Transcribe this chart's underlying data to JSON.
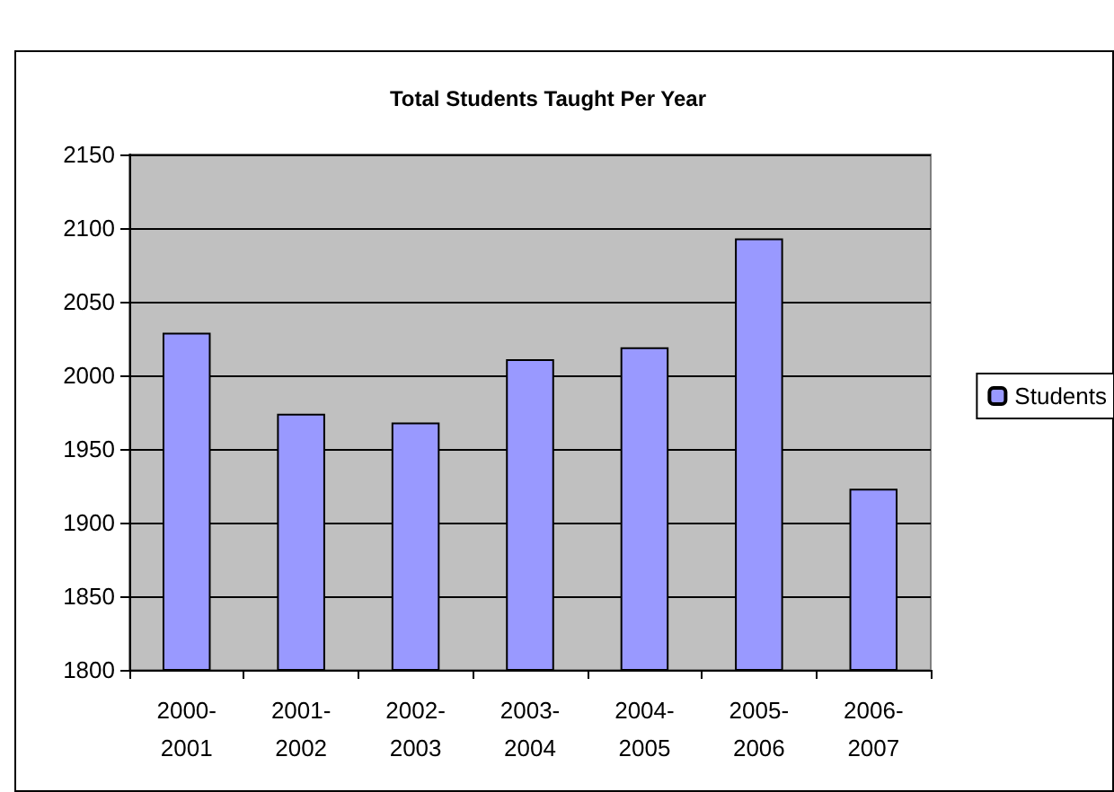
{
  "chart_data": {
    "type": "bar",
    "title": "Total Students Taught Per Year",
    "categories": [
      "2000-2001",
      "2001-2002",
      "2002-2003",
      "2003-2004",
      "2004-2005",
      "2005-2006",
      "2006-2007"
    ],
    "series": [
      {
        "name": "Students",
        "color": "#9999ff",
        "values": [
          2029,
          1974,
          1968,
          2011,
          2019,
          2093,
          1923
        ]
      }
    ],
    "ylim": [
      1800,
      2150
    ],
    "yticks": [
      1800,
      1850,
      1900,
      1950,
      2000,
      2050,
      2100,
      2150
    ],
    "grid": "y",
    "legend": "right"
  }
}
